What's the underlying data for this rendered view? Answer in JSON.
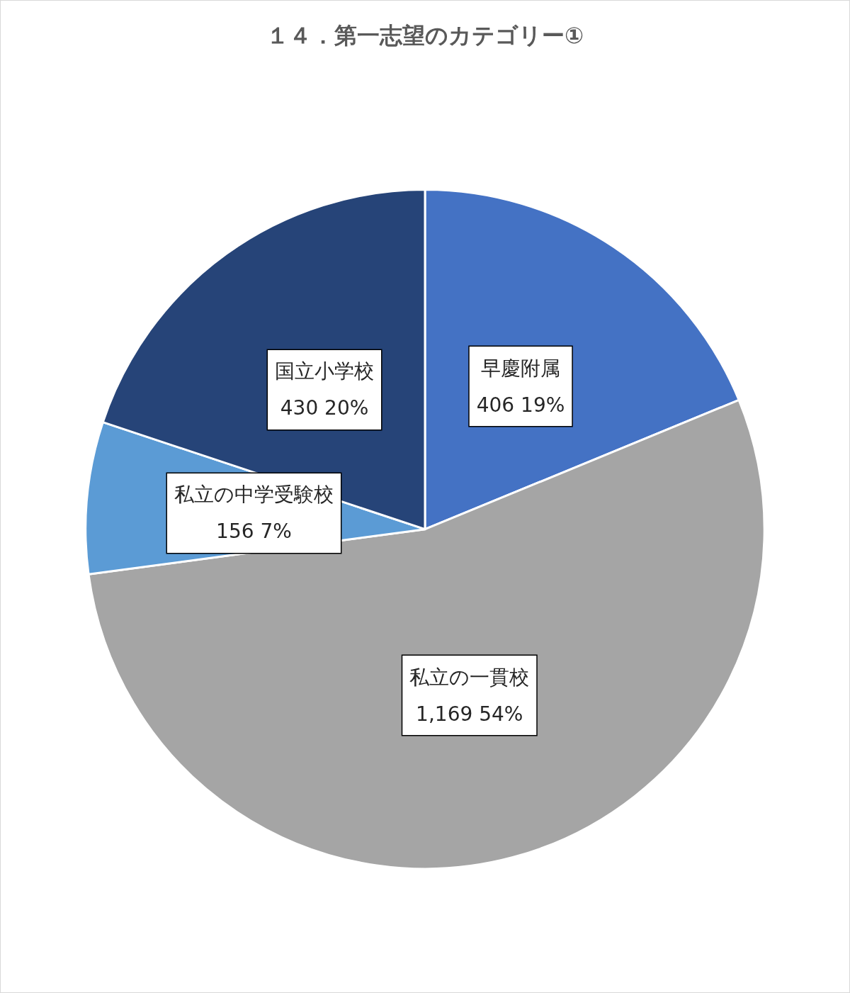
{
  "chart_data": {
    "type": "pie",
    "title": "１４．第一志望のカテゴリー①",
    "categories": [
      "早慶附属",
      "私立の一貫校",
      "私立の中学受験校",
      "国立小学校"
    ],
    "values": [
      406,
      1169,
      156,
      430
    ],
    "colors": [
      "#4472c4",
      "#a5a5a5",
      "#5b9bd5",
      "#264478"
    ],
    "value_labels": [
      "406 19%",
      "1,169 54%",
      "156 7%",
      "430 20%"
    ],
    "legend": false
  }
}
